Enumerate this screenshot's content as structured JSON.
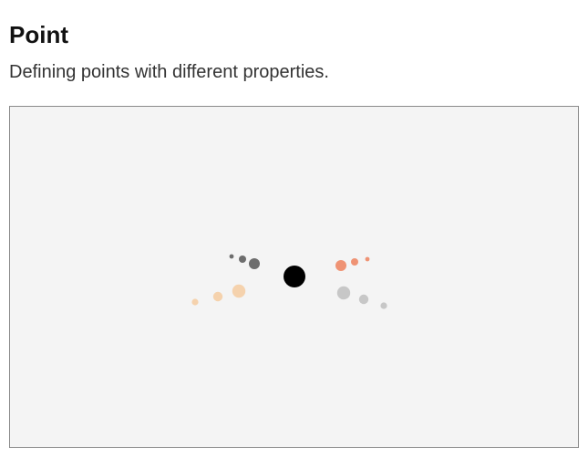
{
  "header": {
    "title": "Point",
    "description": "Defining points with different properties."
  },
  "canvas": {
    "background": "#f4f4f4",
    "border_color": "#8a8a8a"
  },
  "points": [
    {
      "name": "center-point",
      "color": "#000000",
      "opacity": 1.0,
      "size": 3
    },
    {
      "name": "gray-point-1",
      "color": "#555555",
      "opacity": 0.85,
      "size": 1.5
    },
    {
      "name": "gray-point-2",
      "color": "#555555",
      "opacity": 0.85,
      "size": 1.0
    },
    {
      "name": "gray-point-3",
      "color": "#555555",
      "opacity": 0.85,
      "size": 0.6
    },
    {
      "name": "salmon-point-1",
      "color": "#ee8866",
      "opacity": 0.9,
      "size": 1.5
    },
    {
      "name": "salmon-point-2",
      "color": "#ee8866",
      "opacity": 0.9,
      "size": 1.0
    },
    {
      "name": "salmon-point-3",
      "color": "#ee8866",
      "opacity": 0.9,
      "size": 0.6
    },
    {
      "name": "peach-point-1",
      "color": "#f6c796",
      "opacity": 0.75,
      "size": 1.8
    },
    {
      "name": "peach-point-2",
      "color": "#f6c796",
      "opacity": 0.75,
      "size": 1.3
    },
    {
      "name": "peach-point-3",
      "color": "#f6c796",
      "opacity": 0.75,
      "size": 0.9
    },
    {
      "name": "light-gray-point-1",
      "color": "#bbbbbb",
      "opacity": 0.8,
      "size": 1.8
    },
    {
      "name": "light-gray-point-2",
      "color": "#bbbbbb",
      "opacity": 0.8,
      "size": 1.3
    },
    {
      "name": "light-gray-point-3",
      "color": "#bbbbbb",
      "opacity": 0.8,
      "size": 0.9
    }
  ]
}
